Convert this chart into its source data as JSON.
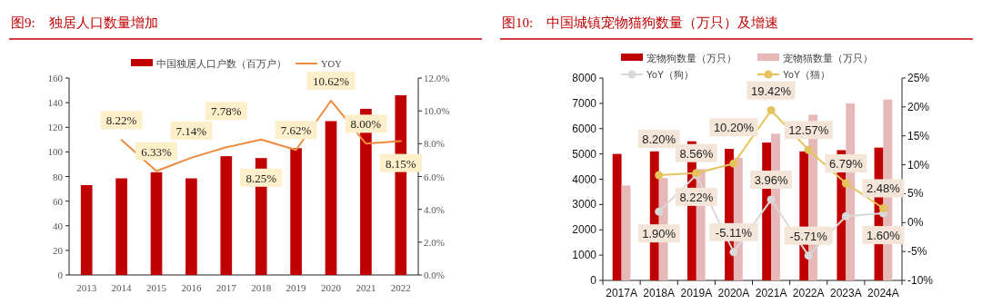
{
  "chart_data": [
    {
      "type": "bar",
      "title": "图9:　独居人口数量增加",
      "categories": [
        "2013",
        "2014",
        "2015",
        "2016",
        "2017",
        "2018",
        "2019",
        "2020",
        "2021",
        "2022"
      ],
      "series": [
        {
          "name": "中国独居人口户数（百万户）",
          "color": "#c00000",
          "values": [
            73,
            78.5,
            83.5,
            78.5,
            96.5,
            95,
            103,
            125,
            135,
            146
          ]
        },
        {
          "name": "YOY",
          "type": "line",
          "axis": "y2",
          "color": "#ee8a3c",
          "marker": "none",
          "values": [
            null,
            8.22,
            6.33,
            7.14,
            7.78,
            8.25,
            7.62,
            10.62,
            8.0,
            8.15
          ],
          "value_labels": [
            null,
            "8.22%",
            "6.33%",
            "7.14%",
            "7.78%",
            "8.25%",
            "7.62%",
            "10.62%",
            "8.00%",
            "8.15%"
          ]
        }
      ],
      "ylim": [
        0,
        160
      ],
      "yticks": [
        0,
        20,
        40,
        60,
        80,
        100,
        120,
        140,
        160
      ],
      "y2lim": [
        0,
        12
      ],
      "y2ticks": [
        {
          "value": 0,
          "label": "0.0%"
        },
        {
          "value": 2,
          "label": "2.0%"
        },
        {
          "value": 4,
          "label": "4.0%"
        },
        {
          "value": 6,
          "label": "6.0%"
        },
        {
          "value": 8,
          "label": "8.0%"
        },
        {
          "value": 10,
          "label": "10.0%"
        },
        {
          "value": 12,
          "label": "12.0%"
        }
      ],
      "legend": "top",
      "grid": false
    },
    {
      "type": "bar",
      "title": "图10:　中国城镇宠物猫狗数量（万只）及增速",
      "categories": [
        "2017A",
        "2018A",
        "2019A",
        "2020A",
        "2021A",
        "2022A",
        "2023A",
        "2024A"
      ],
      "series": [
        {
          "name": "宠物狗数量（万只）",
          "color": "#c00000",
          "values": [
            5000,
            5100,
            5500,
            5200,
            5450,
            5100,
            5150,
            5250
          ]
        },
        {
          "name": "宠物猫数量（万只）",
          "color": "#e6b9b8",
          "values": [
            3750,
            4050,
            4400,
            4850,
            5800,
            6550,
            7000,
            7150
          ]
        },
        {
          "name": "YoY（狗）",
          "type": "line",
          "axis": "y2",
          "color": "#d9d9d9",
          "marker": "circle",
          "values": [
            null,
            1.9,
            8.22,
            -5.11,
            3.96,
            -5.71,
            1.1,
            1.6
          ],
          "value_labels": [
            null,
            "1.90%",
            "8.22%",
            "-5.11%",
            "3.96%",
            "-5.71%",
            null,
            "1.60%"
          ]
        },
        {
          "name": "YoY（猫）",
          "type": "line",
          "axis": "y2",
          "color": "#e6c35c",
          "marker": "circle",
          "values": [
            null,
            8.2,
            8.56,
            10.2,
            19.42,
            12.57,
            6.79,
            2.48
          ],
          "value_labels": [
            null,
            "8.20%",
            "8.56%",
            "10.20%",
            "19.42%",
            "12.57%",
            "6.79%",
            "2.48%"
          ]
        }
      ],
      "ylim": [
        0,
        8000
      ],
      "yticks": [
        0,
        1000,
        2000,
        3000,
        4000,
        5000,
        6000,
        7000,
        8000
      ],
      "y2lim": [
        -10,
        25
      ],
      "y2ticks": [
        {
          "value": -10,
          "label": "-10%"
        },
        {
          "value": -5,
          "label": "-5%"
        },
        {
          "value": 0,
          "label": "0%"
        },
        {
          "value": 5,
          "label": "5%"
        },
        {
          "value": 10,
          "label": "10%"
        },
        {
          "value": 15,
          "label": "15%"
        },
        {
          "value": 20,
          "label": "20%"
        },
        {
          "value": 25,
          "label": "25%"
        }
      ],
      "legend": "top",
      "grid": false
    }
  ]
}
